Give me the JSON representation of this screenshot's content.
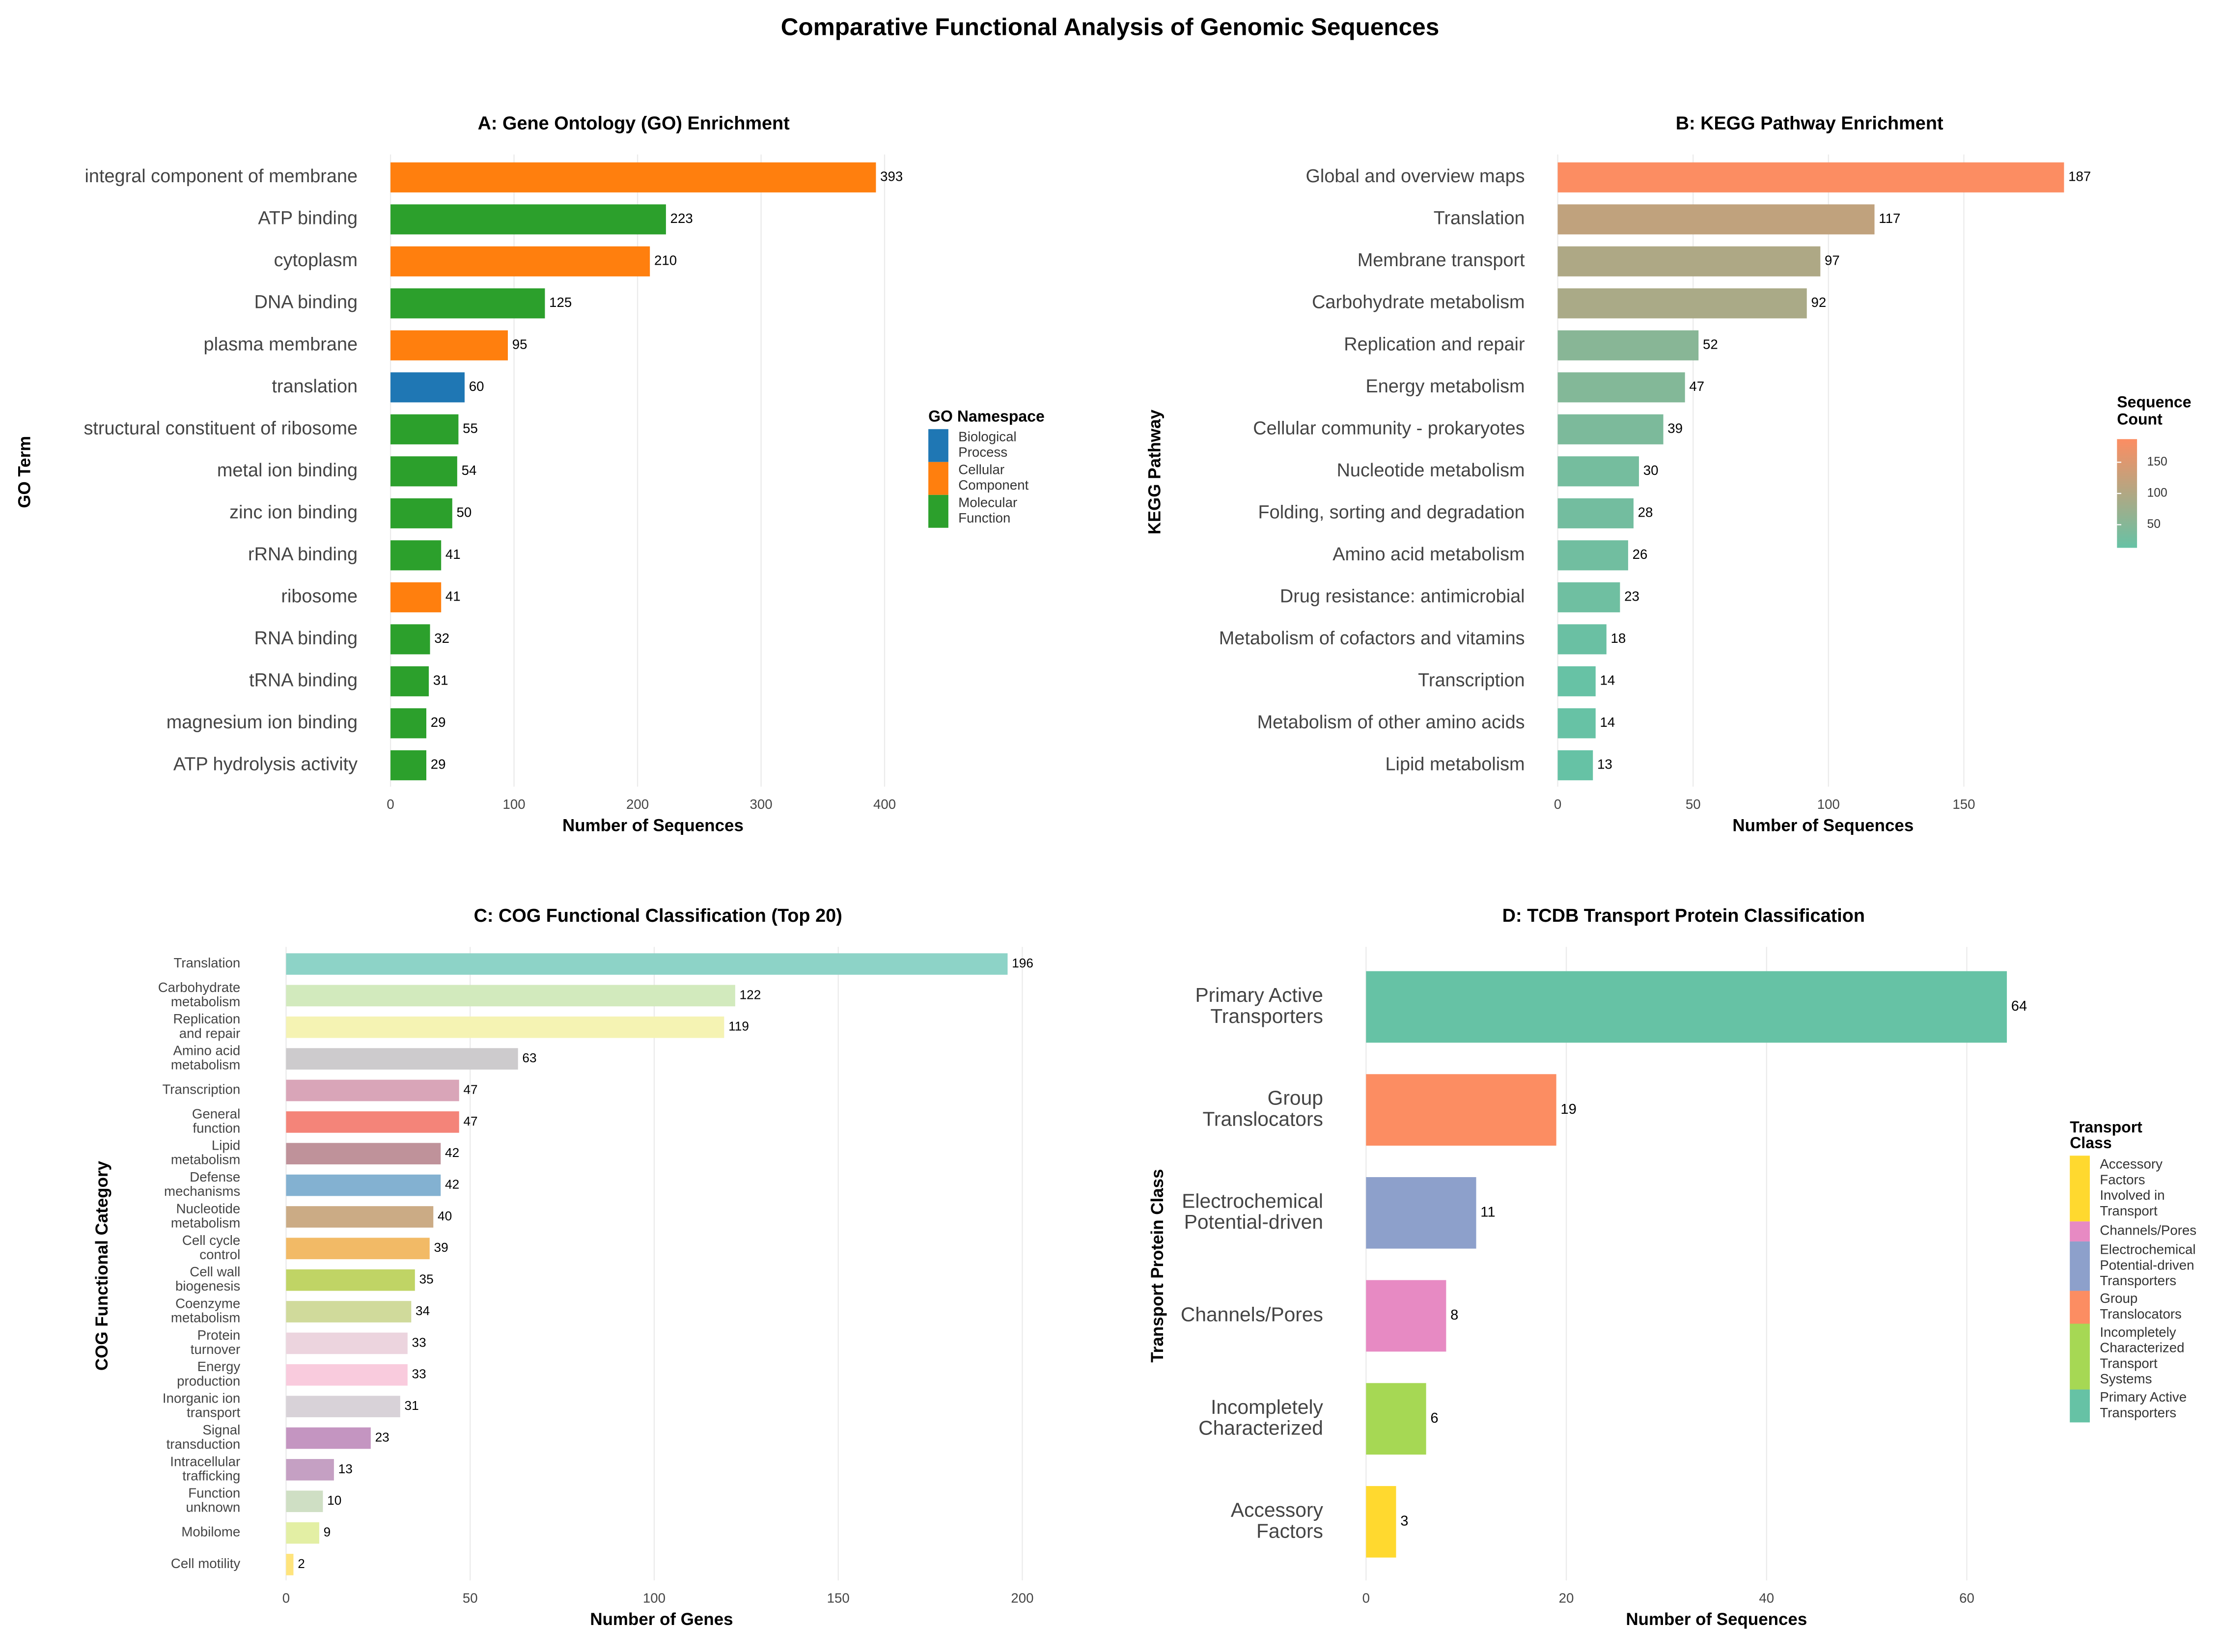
{
  "title": "Comparative Functional Analysis of Genomic Sequences",
  "chart_data": [
    {
      "type": "bar",
      "orientation": "horizontal",
      "title": "A: Gene Ontology (GO) Enrichment",
      "xlabel": "Number of Sequences",
      "ylabel": "GO Term",
      "categories": [
        "integral component of membrane",
        "ATP binding",
        "cytoplasm",
        "DNA binding",
        "plasma membrane",
        "translation",
        "structural constituent of ribosome",
        "metal ion binding",
        "zinc ion binding",
        "rRNA binding",
        "ribosome",
        "RNA binding",
        "tRNA binding",
        "magnesium ion binding",
        "ATP hydrolysis activity"
      ],
      "legend_title": "GO Namespace",
      "series": [
        {
          "name": "Biological Process",
          "color": "#1f77b4",
          "values": [
            null,
            null,
            null,
            null,
            null,
            60,
            null,
            null,
            null,
            null,
            null,
            null,
            null,
            null,
            null
          ]
        },
        {
          "name": "Cellular Component",
          "color": "#ff7f0e",
          "values": [
            393,
            null,
            210,
            null,
            95,
            null,
            null,
            null,
            null,
            null,
            41,
            null,
            null,
            null,
            null
          ]
        },
        {
          "name": "Molecular Function",
          "color": "#2ca02c",
          "values": [
            null,
            223,
            null,
            125,
            null,
            null,
            55,
            54,
            50,
            41,
            null,
            32,
            31,
            29,
            29
          ]
        }
      ],
      "xlim": [
        0,
        425
      ],
      "xticks": [
        0,
        100,
        200,
        300,
        400
      ],
      "grid": true
    },
    {
      "type": "bar",
      "orientation": "horizontal",
      "title": "B: KEGG Pathway Enrichment",
      "xlabel": "Number of Sequences",
      "ylabel": "KEGG Pathway",
      "categories": [
        "Global and overview maps",
        "Translation",
        "Membrane transport",
        "Carbohydrate metabolism",
        "Replication and repair",
        "Energy metabolism",
        "Cellular community - prokaryotes",
        "Nucleotide metabolism",
        "Folding, sorting and degradation",
        "Amino acid metabolism",
        "Drug resistance: antimicrobial",
        "Metabolism of cofactors and vitamins",
        "Transcription",
        "Metabolism of other amino acids",
        "Lipid metabolism"
      ],
      "values": [
        187,
        117,
        97,
        92,
        52,
        47,
        39,
        30,
        28,
        26,
        23,
        18,
        14,
        14,
        13
      ],
      "colorbar_title": "Sequence Count",
      "color_scale": {
        "low": "#66c2a5",
        "high": "#fc8d62",
        "limits": [
          13,
          187
        ]
      },
      "colorbar_ticks": [
        50,
        100,
        150
      ],
      "xlim": [
        0,
        196
      ],
      "xticks": [
        0,
        50,
        100,
        150
      ],
      "grid": true
    },
    {
      "type": "bar",
      "orientation": "horizontal",
      "title": "C: COG Functional Classification (Top 20)",
      "xlabel": "Number of Genes",
      "ylabel": "COG Functional Category",
      "categories": [
        "Translation",
        "Carbohydrate metabolism",
        "Replication and repair",
        "Amino acid metabolism",
        "Transcription",
        "General function",
        "Lipid metabolism",
        "Defense mechanisms",
        "Nucleotide metabolism",
        "Cell cycle control",
        "Cell wall biogenesis",
        "Coenzyme metabolism",
        "Protein turnover",
        "Energy production",
        "Inorganic ion transport",
        "Signal transduction",
        "Intracellular trafficking",
        "Function unknown",
        "Mobilome",
        "Cell motility"
      ],
      "values": [
        196,
        122,
        119,
        63,
        47,
        47,
        42,
        42,
        40,
        39,
        35,
        34,
        33,
        33,
        31,
        23,
        13,
        10,
        9,
        2
      ],
      "colors": [
        "#8dd3c7",
        "#d2eabd",
        "#f5f3b3",
        "#cdcbcd",
        "#d9a5b8",
        "#f48479",
        "#bf929a",
        "#83b1d1",
        "#cbab85",
        "#f2ba66",
        "#c0d465",
        "#d0da9b",
        "#ecd4de",
        "#f9cbdd",
        "#d8d2d8",
        "#c495c1",
        "#c5a0c3",
        "#cfdfc4",
        "#e3efa4",
        "#ffe47c"
      ],
      "xlim": [
        0,
        204
      ],
      "xticks": [
        0,
        50,
        100,
        150,
        200
      ],
      "grid": true
    },
    {
      "type": "bar",
      "orientation": "horizontal",
      "title": "D: TCDB Transport Protein Classification",
      "xlabel": "Number of Sequences",
      "ylabel": "Transport Protein Class",
      "categories": [
        "Primary Active Transporters",
        "Group Translocators",
        "Electrochemical Potential-driven",
        "Channels/Pores",
        "Incompletely Characterized",
        "Accessory Factors"
      ],
      "legend_title": "Transport Class",
      "series": [
        {
          "name": "Accessory Factors Involved in Transport",
          "color": "#ffd92f",
          "values": [
            null,
            null,
            null,
            null,
            null,
            3
          ]
        },
        {
          "name": "Channels/Pores",
          "color": "#e78ac3",
          "values": [
            null,
            null,
            null,
            8,
            null,
            null
          ]
        },
        {
          "name": "Electrochemical Potential-driven Transporters",
          "color": "#8da0cb",
          "values": [
            null,
            null,
            11,
            null,
            null,
            null
          ]
        },
        {
          "name": "Group Translocators",
          "color": "#fc8d62",
          "values": [
            null,
            19,
            null,
            null,
            null,
            null
          ]
        },
        {
          "name": "Incompletely Characterized Transport Systems",
          "color": "#a6d854",
          "values": [
            null,
            null,
            null,
            null,
            6,
            null
          ]
        },
        {
          "name": "Primary Active Transporters",
          "color": "#66c2a5",
          "values": [
            64,
            null,
            null,
            null,
            null,
            null
          ]
        }
      ],
      "xlim": [
        0,
        70
      ],
      "xticks": [
        0,
        20,
        40,
        60
      ],
      "grid": true
    }
  ]
}
